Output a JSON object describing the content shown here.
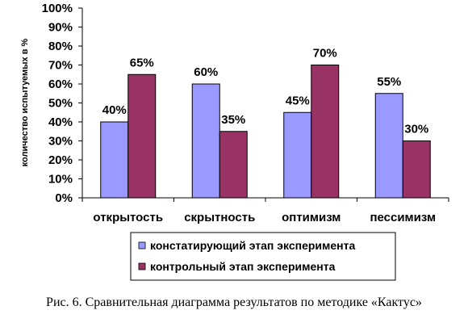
{
  "chart_data": {
    "type": "bar",
    "categories": [
      "открытость",
      "скрытность",
      "оптимизм",
      "пессимизм"
    ],
    "series": [
      {
        "name": "констатирующий этап эксперимента",
        "values": [
          40,
          60,
          45,
          55
        ],
        "color": "#9999ff"
      },
      {
        "name": "контрольный этап эксперимента",
        "values": [
          65,
          35,
          70,
          30
        ],
        "color": "#993366"
      }
    ],
    "data_labels": [
      [
        "40%",
        "60%",
        "45%",
        "55%"
      ],
      [
        "65%",
        "35%",
        "70%",
        "30%"
      ]
    ],
    "ylabel": "количество испытуемых в %",
    "ylim": [
      0,
      100
    ],
    "yticks": [
      "0%",
      "10%",
      "20%",
      "30%",
      "40%",
      "50%",
      "60%",
      "70%",
      "80%",
      "90%",
      "100%"
    ],
    "grid": false,
    "legend_position": "bottom"
  },
  "caption": "Рис. 6. Сравнительная диаграмма результатов по методике «Кактус»"
}
